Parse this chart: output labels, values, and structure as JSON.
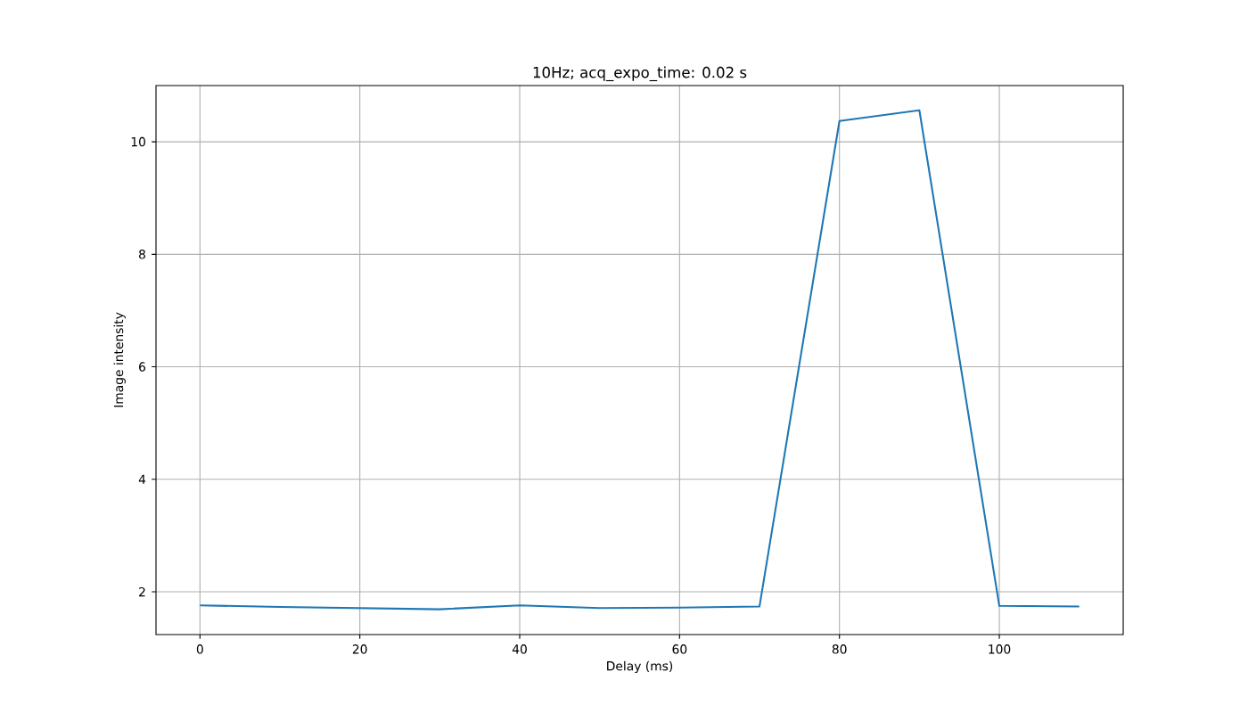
{
  "chart_data": {
    "type": "line",
    "title": "10Hz; acq_expo_time: 0.02 s",
    "xlabel": "Delay (ms)",
    "ylabel": "Image intensity",
    "x": [
      0,
      10,
      20,
      30,
      40,
      50,
      60,
      70,
      80,
      90,
      100,
      110
    ],
    "series": [
      {
        "color": "#1f77b4",
        "values": [
          1.76,
          1.73,
          1.71,
          1.69,
          1.76,
          1.71,
          1.72,
          1.74,
          10.37,
          10.56,
          1.75,
          1.74
        ]
      }
    ],
    "xlim": [
      -5.5,
      115.5
    ],
    "ylim": [
      1.24,
      11.0
    ],
    "xticks": [
      0,
      20,
      40,
      60,
      80,
      100
    ],
    "yticks": [
      2,
      4,
      6,
      8,
      10
    ],
    "grid": true,
    "marker": "none",
    "line_style": "solid"
  }
}
